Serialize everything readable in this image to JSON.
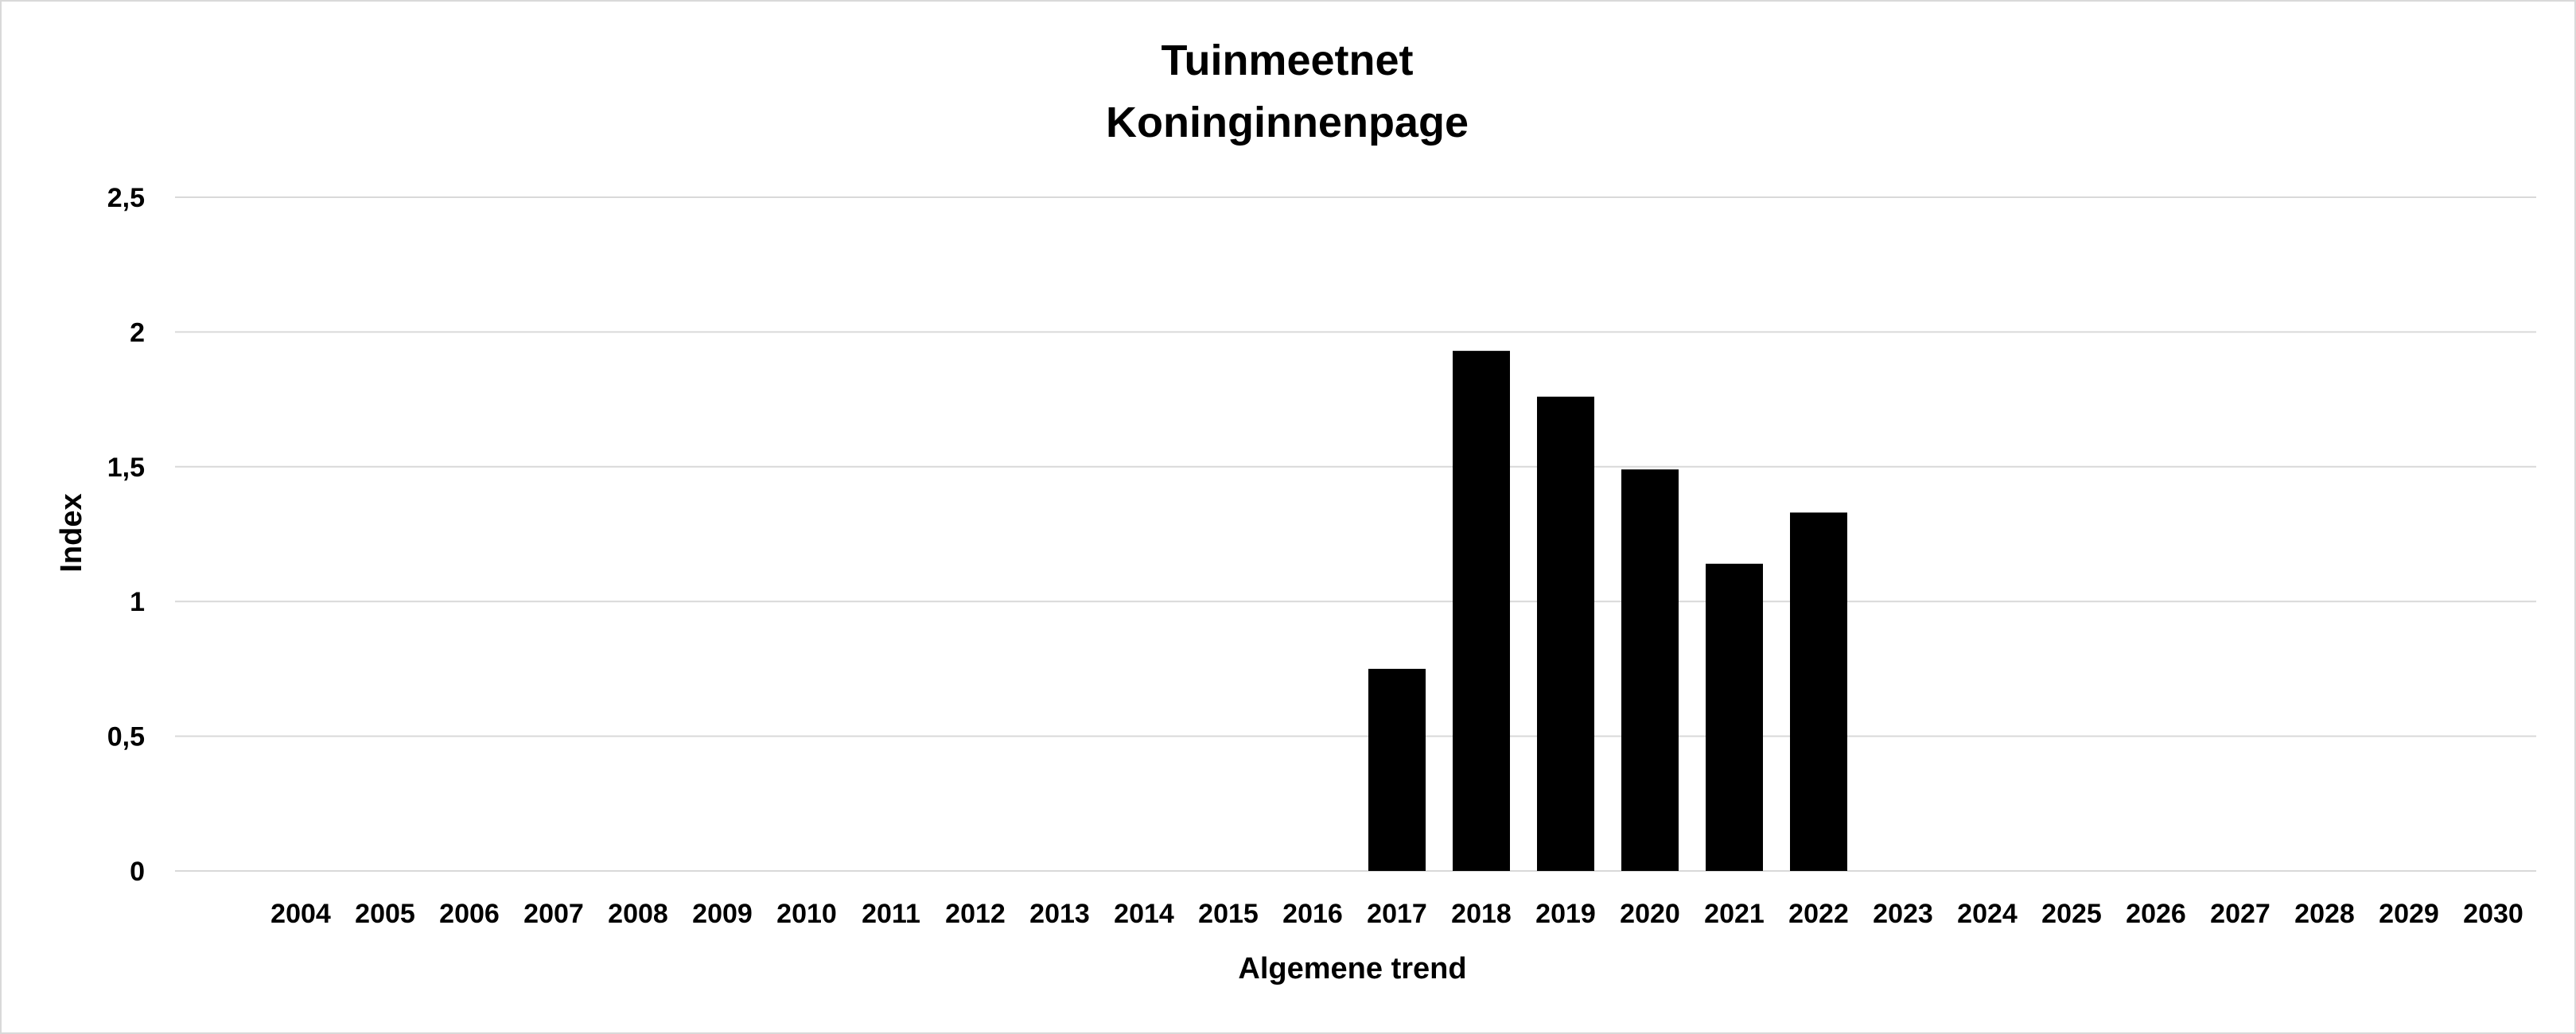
{
  "chart_data": {
    "type": "bar",
    "title": [
      "Tuinmeetnet",
      "Koninginnenpage"
    ],
    "xlabel": "Algemene trend",
    "ylabel": "Index",
    "categories": [
      "2004",
      "2005",
      "2006",
      "2007",
      "2008",
      "2009",
      "2010",
      "2011",
      "2012",
      "2013",
      "2014",
      "2015",
      "2016",
      "2017",
      "2018",
      "2019",
      "2020",
      "2021",
      "2022",
      "2023",
      "2024",
      "2025",
      "2026",
      "2027",
      "2028",
      "2029",
      "2030"
    ],
    "values": [
      null,
      null,
      null,
      null,
      null,
      null,
      null,
      null,
      null,
      null,
      null,
      null,
      null,
      0.75,
      1.93,
      1.76,
      1.49,
      1.14,
      1.33,
      null,
      null,
      null,
      null,
      null,
      null,
      null,
      null
    ],
    "ylim": [
      0,
      2.5
    ],
    "yticks": [
      "0",
      "0,5",
      "1",
      "1,5",
      "2",
      "2,5"
    ],
    "grid": true,
    "legend": "none",
    "bar_color": "#000000",
    "grid_color": "#d9d9d9"
  }
}
